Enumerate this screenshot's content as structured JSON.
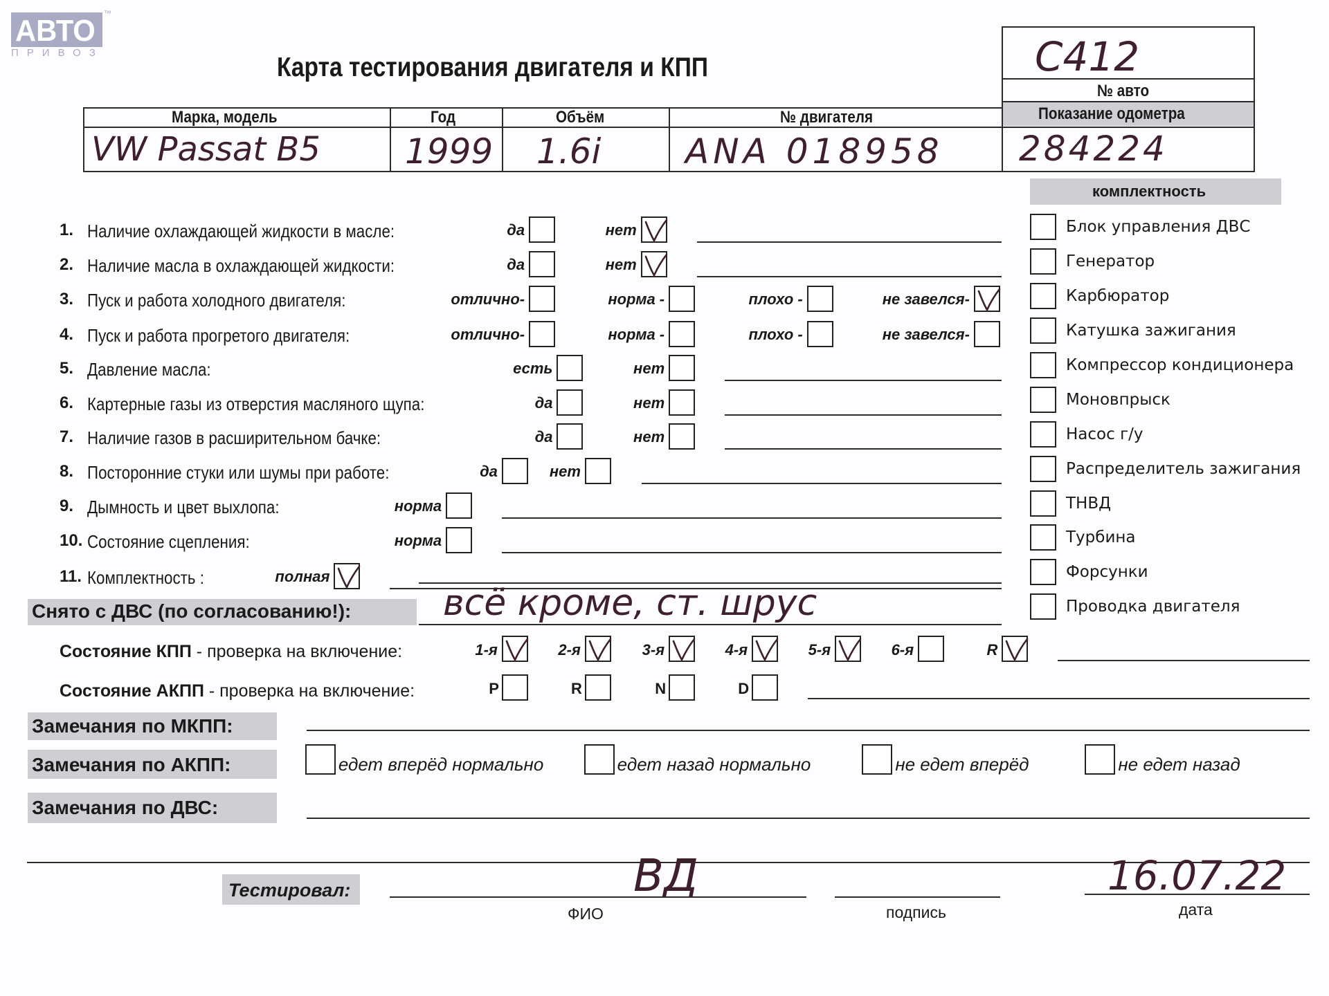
{
  "logo": {
    "text": "АВТО",
    "sub": "ПРИВОЗ",
    "tm": "™"
  },
  "title": "Карта тестирования двигателя  и КПП",
  "car_number": {
    "value": "С412",
    "label": "№ авто"
  },
  "odometer": {
    "label": "Показание одометра",
    "value": "284224"
  },
  "header": {
    "columns": [
      "Марка, модель",
      "Год",
      "Объём",
      "№ двигателя"
    ],
    "values": [
      "VW Passat B5",
      "1999",
      "1.6i",
      "ANA 018958"
    ]
  },
  "checklist": [
    {
      "num": "1.",
      "label": "Наличие охлаждающей жидкости в масле:",
      "options": [
        {
          "label": "да",
          "checked": false
        },
        {
          "label": "нет",
          "checked": true
        }
      ],
      "line": true
    },
    {
      "num": "2.",
      "label": "Наличие масла в охлаждающей жидкости:",
      "options": [
        {
          "label": "да",
          "checked": false
        },
        {
          "label": "нет",
          "checked": true
        }
      ],
      "line": true
    },
    {
      "num": "3.",
      "label": "Пуск и работа холодного двигателя:",
      "options": [
        {
          "label": "отлично-",
          "checked": false
        },
        {
          "label": "норма -",
          "checked": false
        },
        {
          "label": "плохо -",
          "checked": false
        },
        {
          "label": "не завелся-",
          "checked": true
        }
      ],
      "line": false
    },
    {
      "num": "4.",
      "label": "Пуск и работа прогретого двигателя:",
      "options": [
        {
          "label": "отлично-",
          "checked": false
        },
        {
          "label": "норма -",
          "checked": false
        },
        {
          "label": "плохо -",
          "checked": false
        },
        {
          "label": "не завелся-",
          "checked": false
        }
      ],
      "line": false
    },
    {
      "num": "5.",
      "label": "Давление масла:",
      "options": [
        {
          "label": "есть",
          "checked": false
        },
        {
          "label": "нет",
          "checked": false
        }
      ],
      "line": true
    },
    {
      "num": "6.",
      "label": "Картерные газы из отверстия масляного щупа:",
      "options": [
        {
          "label": "да",
          "checked": false
        },
        {
          "label": "нет",
          "checked": false
        }
      ],
      "line": true
    },
    {
      "num": "7.",
      "label": "Наличие газов в расширительном бачке:",
      "options": [
        {
          "label": "да",
          "checked": false
        },
        {
          "label": "нет",
          "checked": false
        }
      ],
      "line": true
    },
    {
      "num": "8.",
      "label": "Посторонние стуки или шумы при работе:",
      "options": [
        {
          "label": "да",
          "checked": false
        },
        {
          "label": "нет",
          "checked": false
        }
      ],
      "line": true
    },
    {
      "num": "9.",
      "label": "Дымность и цвет выхлопа:",
      "options": [
        {
          "label": "норма",
          "checked": false
        }
      ],
      "line": true
    },
    {
      "num": "10.",
      "label": "Состояние сцепления:",
      "options": [
        {
          "label": "норма",
          "checked": false
        }
      ],
      "line": true
    },
    {
      "num": "11.",
      "label": "Комплектность :",
      "options": [
        {
          "label": "полная",
          "checked": true
        }
      ],
      "line": true
    }
  ],
  "completeness": {
    "title": "комплектность",
    "items": [
      {
        "label": "Блок управления ДВС",
        "checked": false
      },
      {
        "label": "Генератор",
        "checked": false
      },
      {
        "label": "Карбюратор",
        "checked": false
      },
      {
        "label": "Катушка зажигания",
        "checked": false
      },
      {
        "label": "Компрессор кондиционера",
        "checked": false
      },
      {
        "label": "Моновпрыск",
        "checked": false
      },
      {
        "label": "Насос г/у",
        "checked": false
      },
      {
        "label": "Распределитель зажигания",
        "checked": false
      },
      {
        "label": "ТНВД",
        "checked": false
      },
      {
        "label": "Турбина",
        "checked": false
      },
      {
        "label": "Форсунки",
        "checked": false
      },
      {
        "label": "Проводка двигателя",
        "checked": false
      }
    ]
  },
  "removed": {
    "label": "Снято с ДВС (по согласованию!):",
    "value": "всё кроме, ст. шрус"
  },
  "manual_gearbox": {
    "label_bold": "Состояние КПП",
    "label_rest": " - проверка на включение:",
    "gears": [
      {
        "label": "1-я",
        "checked": true
      },
      {
        "label": "2-я",
        "checked": true
      },
      {
        "label": "3-я",
        "checked": true
      },
      {
        "label": "4-я",
        "checked": true
      },
      {
        "label": "5-я",
        "checked": true
      },
      {
        "label": "6-я",
        "checked": false
      },
      {
        "label": "R",
        "checked": true
      }
    ]
  },
  "auto_gearbox": {
    "label_bold": "Состояние АКПП",
    "label_rest": " - проверка на включение:",
    "positions": [
      {
        "label": "P",
        "checked": false
      },
      {
        "label": "R",
        "checked": false
      },
      {
        "label": "N",
        "checked": false
      },
      {
        "label": "D",
        "checked": false
      }
    ]
  },
  "remarks": {
    "manual": "Замечания по МКПП:",
    "auto": "Замечания по АКПП:",
    "engine": "Замечания по ДВС:",
    "auto_options": [
      {
        "label": "едет вперёд нормально",
        "checked": false
      },
      {
        "label": "едет назад нормально",
        "checked": false
      },
      {
        "label": "не едет вперёд",
        "checked": false
      },
      {
        "label": "не едет назад",
        "checked": false
      }
    ]
  },
  "signoff": {
    "label": "Тестировал:",
    "name_label": "ФИО",
    "name_value": "ВД",
    "signature_label": "подпись",
    "date_label": "дата",
    "date_value": "16.07.22"
  },
  "colors": {
    "ink": "#3e1f2c",
    "shade": "#cfcfd3",
    "logo": "#a9abc4"
  }
}
